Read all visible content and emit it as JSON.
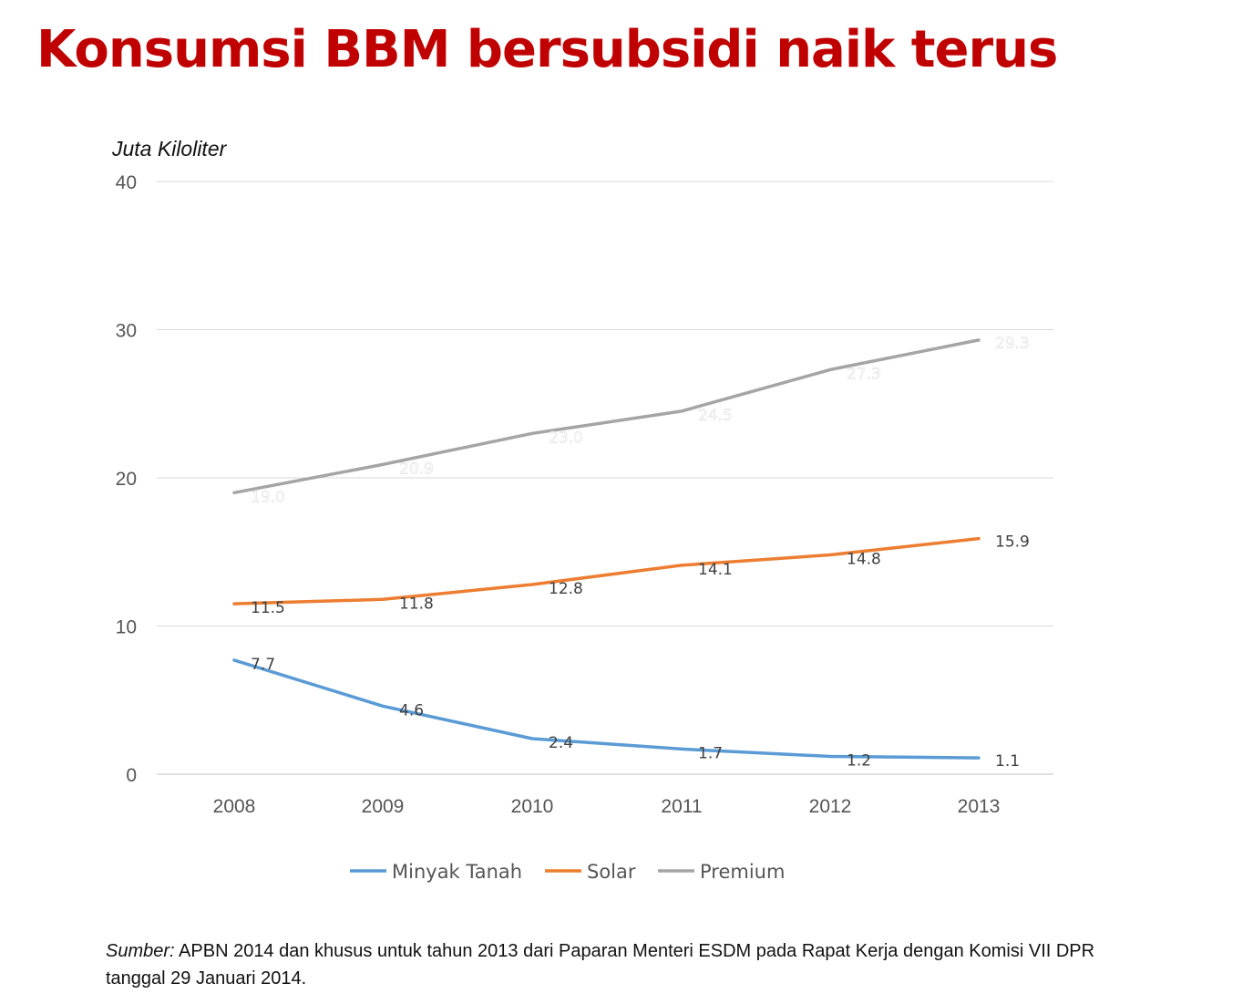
{
  "title": "Konsumsi BBM bersubsidi naik terus",
  "unit_label": "Juta Kiloliter",
  "source": {
    "lead": "Sumber:",
    "text": " APBN 2014 dan khusus untuk tahun 2013 dari Paparan Menteri ESDM pada Rapat Kerja dengan Komisi VII DPR tanggal 29 Januari 2014."
  },
  "chart_data": {
    "type": "line",
    "title": "Konsumsi BBM bersubsidi naik terus",
    "ylabel": "Juta Kiloliter",
    "xlabel": "",
    "categories": [
      "2008",
      "2009",
      "2010",
      "2011",
      "2012",
      "2013"
    ],
    "ylim": [
      0,
      40
    ],
    "yticks": [
      0,
      10,
      20,
      30,
      40
    ],
    "grid": true,
    "legend_position": "bottom",
    "series": [
      {
        "name": "Minyak Tanah",
        "color": "#5b9bd5",
        "values": [
          7.7,
          4.6,
          2.4,
          1.7,
          1.2,
          1.1
        ],
        "labels": [
          "7.7",
          "4.6",
          "2.4",
          "1.7",
          "1.2",
          "1.1"
        ]
      },
      {
        "name": "Solar",
        "color": "#ed7d31",
        "values": [
          11.5,
          11.8,
          12.8,
          14.1,
          14.8,
          15.9
        ],
        "labels": [
          "11.5",
          "11.8",
          "12.8",
          "14.1",
          "14.8",
          "15.9"
        ]
      },
      {
        "name": "Premium",
        "color": "#a5a5a5",
        "values": [
          19.0,
          20.9,
          23.0,
          24.5,
          27.3,
          29.3
        ],
        "labels": [
          "19.0",
          "20.9",
          "23.0",
          "24.5",
          "27.3",
          "29.3"
        ]
      }
    ]
  }
}
